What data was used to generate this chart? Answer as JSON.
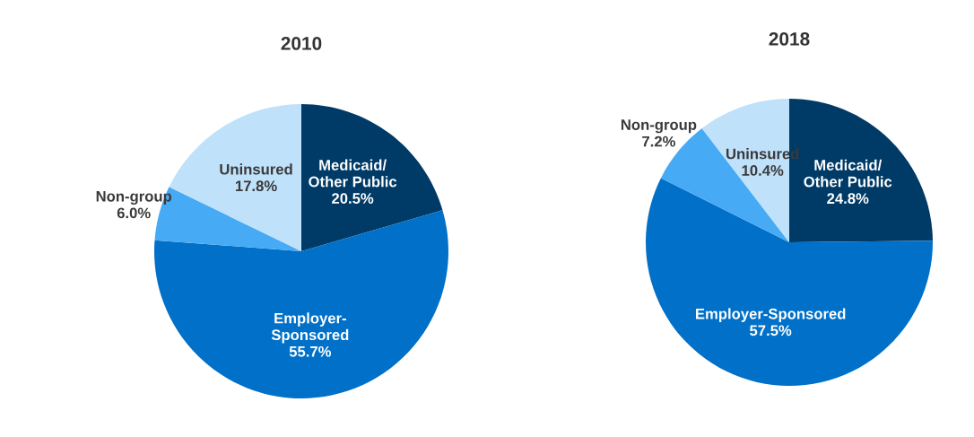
{
  "chart_data": [
    {
      "type": "pie",
      "title": "2010",
      "categories": [
        "Medicaid/\nOther Public",
        "Employer-\nSponsored",
        "Non-group",
        "Uninsured"
      ],
      "values": [
        20.5,
        55.7,
        6.0,
        17.8
      ],
      "value_labels": [
        "20.5%",
        "55.7%",
        "6.0%",
        "17.8%"
      ],
      "colors": [
        "#003a66",
        "#0070c8",
        "#46aaf5",
        "#bfe1fa"
      ]
    },
    {
      "type": "pie",
      "title": "2018",
      "categories": [
        "Medicaid/\nOther Public",
        "Employer-Sponsored",
        "Non-group",
        "Uninsured"
      ],
      "values": [
        24.8,
        57.5,
        7.2,
        10.4
      ],
      "value_labels": [
        "24.8%",
        "57.5%",
        "7.2%",
        "10.4%"
      ],
      "colors": [
        "#003a66",
        "#0070c8",
        "#46aaf5",
        "#bfe1fa"
      ]
    }
  ]
}
